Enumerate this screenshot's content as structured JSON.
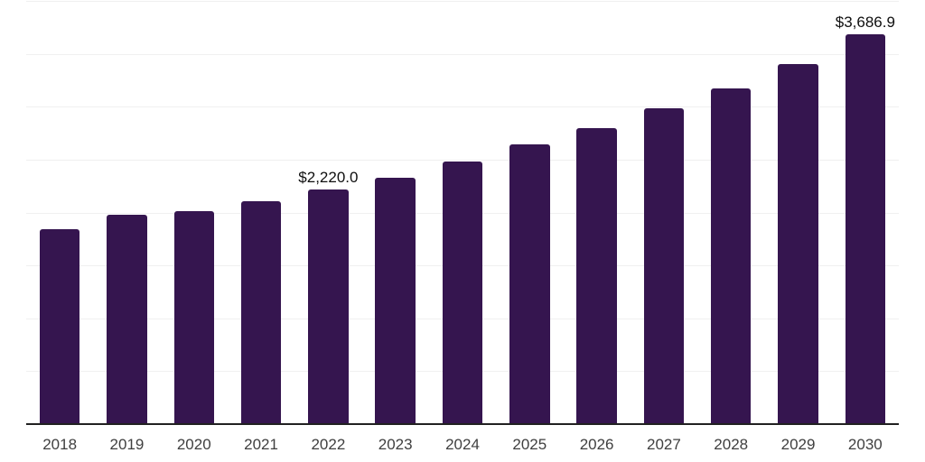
{
  "chart_data": {
    "type": "bar",
    "title": "",
    "xlabel": "",
    "ylabel": "",
    "categories": [
      "2018",
      "2019",
      "2020",
      "2021",
      "2022",
      "2023",
      "2024",
      "2025",
      "2026",
      "2027",
      "2028",
      "2029",
      "2030"
    ],
    "values": [
      1840,
      1975,
      2010,
      2110,
      2220.0,
      2330,
      2480,
      2640,
      2800,
      2985,
      3170,
      3405,
      3686.9
    ],
    "data_labels": [
      {
        "category": "2022",
        "text": "$2,220.0"
      },
      {
        "category": "2030",
        "text": "$3,686.9"
      }
    ],
    "ylim": [
      0,
      4000
    ],
    "grid": true,
    "gridline_interval": 500,
    "y_axis_labels_shown": false,
    "legend": "none"
  },
  "colors": {
    "bar": "#35154F",
    "gridline": "#f0f0f0",
    "axis_line": "#212121",
    "tick_label": "#3f3f3f",
    "data_label": "#0f0f0f",
    "background": "#ffffff"
  }
}
